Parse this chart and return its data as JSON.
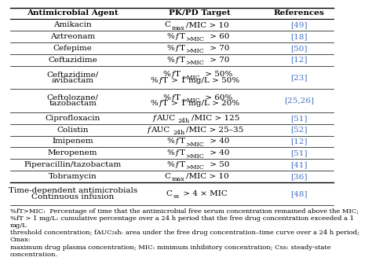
{
  "title_cols": [
    "Antimicrobial Agent",
    "PK/PD Target",
    "References"
  ],
  "rows": [
    {
      "agent": "Amikacin",
      "pkpd": [
        {
          "text": "C",
          "style": "normal"
        },
        {
          "text": "max",
          "style": "sub"
        },
        {
          "text": "/MIC > 10",
          "style": "normal"
        }
      ],
      "ref": "[49]",
      "multiline": false
    },
    {
      "agent": "Aztreonam",
      "pkpd": [
        {
          "text": "%",
          "style": "normal"
        },
        {
          "text": "f",
          "style": "italic"
        },
        {
          "text": "T",
          "style": "normal"
        },
        {
          "text": ">MIC",
          "style": "sub"
        },
        {
          "text": " > 60",
          "style": "normal"
        }
      ],
      "ref": "[18]",
      "multiline": false
    },
    {
      "agent": "Cefepime",
      "pkpd": [
        {
          "text": "%",
          "style": "normal"
        },
        {
          "text": "f",
          "style": "italic"
        },
        {
          "text": "T",
          "style": "normal"
        },
        {
          "text": ">MIC",
          "style": "sub"
        },
        {
          "text": " > 70",
          "style": "normal"
        }
      ],
      "ref": "[50]",
      "multiline": false
    },
    {
      "agent": "Ceftazidime",
      "pkpd": [
        {
          "text": "%",
          "style": "normal"
        },
        {
          "text": "f",
          "style": "italic"
        },
        {
          "text": "T",
          "style": "normal"
        },
        {
          "text": ">MIC",
          "style": "sub"
        },
        {
          "text": " > 70",
          "style": "normal"
        }
      ],
      "ref": "[12]",
      "multiline": false
    },
    {
      "agent": "Ceftazidime/\navibactam",
      "pkpd_line1": [
        {
          "text": "%",
          "style": "normal"
        },
        {
          "text": "f",
          "style": "italic"
        },
        {
          "text": "T",
          "style": "normal"
        },
        {
          "text": ">MIC",
          "style": "sub"
        },
        {
          "text": " > 50%",
          "style": "normal"
        }
      ],
      "pkpd_line2": [
        {
          "text": "%",
          "style": "normal"
        },
        {
          "text": "f",
          "style": "italic"
        },
        {
          "text": "T",
          "style": "normal"
        },
        {
          "text": " > 1 mg/L > 50%",
          "style": "normal"
        }
      ],
      "ref": "[23]",
      "multiline": true
    },
    {
      "agent": "Ceftolozane/\ntazobactam",
      "pkpd_line1": [
        {
          "text": "%",
          "style": "normal"
        },
        {
          "text": "f",
          "style": "italic"
        },
        {
          "text": "T",
          "style": "normal"
        },
        {
          "text": ">MIC",
          "style": "sub"
        },
        {
          "text": " > 60%",
          "style": "normal"
        }
      ],
      "pkpd_line2": [
        {
          "text": "%",
          "style": "normal"
        },
        {
          "text": "f",
          "style": "italic"
        },
        {
          "text": "T",
          "style": "normal"
        },
        {
          "text": " > 1 mg/L > 20%",
          "style": "normal"
        }
      ],
      "ref": "[25,26]",
      "multiline": true
    },
    {
      "agent": "Ciprofloxacin",
      "pkpd": [
        {
          "text": "f",
          "style": "italic"
        },
        {
          "text": "AUC",
          "style": "normal"
        },
        {
          "text": "24h",
          "style": "sub"
        },
        {
          "text": "/MIC > 125",
          "style": "normal"
        }
      ],
      "ref": "[51]",
      "multiline": false
    },
    {
      "agent": "Colistin",
      "pkpd": [
        {
          "text": "f",
          "style": "italic"
        },
        {
          "text": "AUC",
          "style": "normal"
        },
        {
          "text": "24h",
          "style": "sub"
        },
        {
          "text": "/MIC > 25–35",
          "style": "normal"
        }
      ],
      "ref": "[52]",
      "multiline": false
    },
    {
      "agent": "Imipenem",
      "pkpd": [
        {
          "text": "%",
          "style": "normal"
        },
        {
          "text": "f",
          "style": "italic"
        },
        {
          "text": "T",
          "style": "normal"
        },
        {
          "text": ">MIC",
          "style": "sub"
        },
        {
          "text": " > 40",
          "style": "normal"
        }
      ],
      "ref": "[12]",
      "multiline": false
    },
    {
      "agent": "Meropenem",
      "pkpd": [
        {
          "text": "%",
          "style": "normal"
        },
        {
          "text": "f",
          "style": "italic"
        },
        {
          "text": "T",
          "style": "normal"
        },
        {
          "text": ">MIC",
          "style": "sub"
        },
        {
          "text": " > 40",
          "style": "normal"
        }
      ],
      "ref": "[51]",
      "multiline": false
    },
    {
      "agent": "Piperacillin/tazobactam",
      "pkpd": [
        {
          "text": "%",
          "style": "normal"
        },
        {
          "text": "f",
          "style": "italic"
        },
        {
          "text": "T",
          "style": "normal"
        },
        {
          "text": ">MIC",
          "style": "sub"
        },
        {
          "text": " > 50",
          "style": "normal"
        }
      ],
      "ref": "[41]",
      "multiline": false
    },
    {
      "agent": "Tobramycin",
      "pkpd": [
        {
          "text": "C",
          "style": "normal"
        },
        {
          "text": "max",
          "style": "sub"
        },
        {
          "text": "/MIC > 10",
          "style": "normal"
        }
      ],
      "ref": "[36]",
      "multiline": false
    },
    {
      "agent": "Time-dependent antimicrobials\nContinuous infusion",
      "pkpd": [
        {
          "text": "C",
          "style": "normal"
        },
        {
          "text": "ss",
          "style": "sub"
        },
        {
          "text": " > 4 × MIC",
          "style": "normal"
        }
      ],
      "ref": "[48]",
      "multiline": false
    }
  ],
  "footnote": "%fT>MIC:  Percentage of time that the antimicrobial free serum concentration remained above the MIC;\n%fT > 1 mg/L: cumulative percentage over a 24 h period that the free drug concentration exceeded a 1 mg/L\nthreshold concentration; fAUC₂₄h: area under the free drug concentration–time curve over a 24 h period; Cmax:\nmaximum drug plasma concentration; MIC: minimum inhibitory concentration; Css: steady-state concentration.",
  "ref_color": "#4472C4",
  "bg_color": "#ffffff",
  "text_color": "#000000",
  "header_bold": true,
  "font_size": 7.5,
  "footnote_size": 6.0
}
